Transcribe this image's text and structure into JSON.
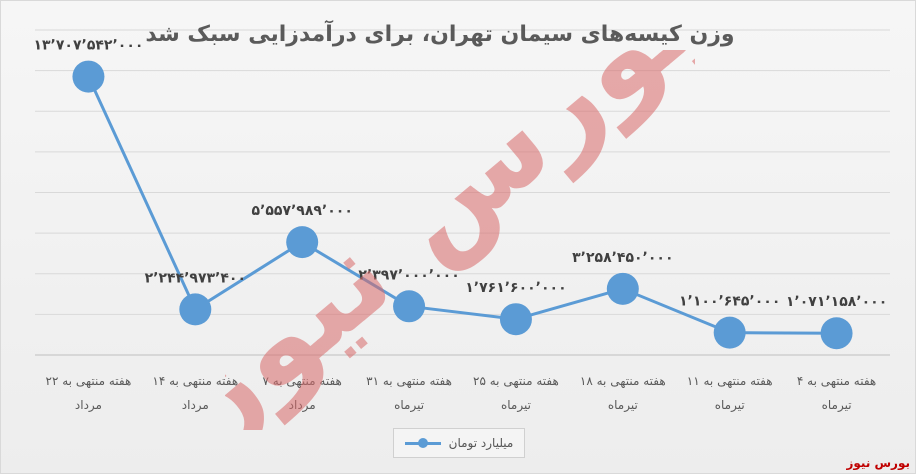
{
  "chart_data": {
    "type": "line",
    "title": "وزن کیسه‌های سیمان تهران، برای درآمدزایی سبک شد",
    "categories": [
      [
        "هفته منتهی به ۴",
        "تیرماه"
      ],
      [
        "هفته منتهی به ۱۱",
        "تیرماه"
      ],
      [
        "هفته منتهی به ۱۸",
        "تیرماه"
      ],
      [
        "هفته منتهی به ۲۵",
        "تیرماه"
      ],
      [
        "هفته منتهی به ۳۱",
        "تیرماه"
      ],
      [
        "هفته منتهی به ۷",
        "مرداد"
      ],
      [
        "هفته منتهی به ۱۴",
        "مرداد"
      ],
      [
        "هفته منتهی به ۲۲",
        "مرداد"
      ]
    ],
    "series": [
      {
        "name": "میلیارد تومان",
        "color": "#5b9bd5",
        "values": [
          1071158000,
          1100645000,
          3258450000,
          1761600000,
          2397000000,
          5557989000,
          2244973400,
          13707542000
        ],
        "data_labels": [
          "۱٬۰۷۱٬۱۵۸٬۰۰۰",
          "۱٬۱۰۰٬۶۴۵٬۰۰۰",
          "۳٬۲۵۸٬۴۵۰٬۰۰۰",
          "۱٬۷۶۱٬۶۰۰٬۰۰۰",
          "۲٬۳۹۷٬۰۰۰٬۰۰۰",
          "۵٬۵۵۷٬۹۸۹٬۰۰۰",
          "۲٬۲۴۴٬۹۷۳٬۴۰۰",
          "۱۳٬۷۰۷٬۵۴۲٬۰۰۰"
        ]
      }
    ],
    "ylim": [
      0,
      16000000000
    ],
    "grid": true,
    "legend_position": "bottom"
  },
  "watermark_text": "بورس نیوز",
  "brand_text": "بورس نیوز"
}
